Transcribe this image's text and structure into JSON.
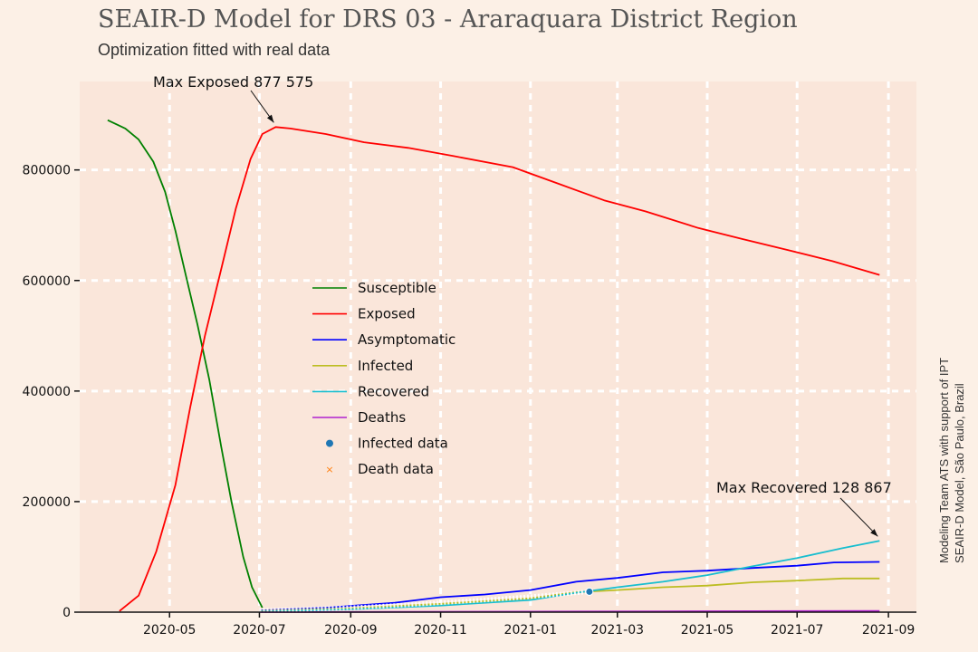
{
  "header": {
    "title": "SEAIR-D Model for DRS 03 - Araraquara District Region",
    "subtitle": "Optimization fitted with real data"
  },
  "credits": {
    "line1": "Modeling Team ATS with support of IPT",
    "line2": "SEAIR-D Model, São Paulo, Brazil"
  },
  "chart_data": {
    "type": "line",
    "xlim": [
      "2020-03-01",
      "2021-09-20"
    ],
    "ylim": [
      0,
      960000
    ],
    "x_ticks": [
      "2020-05",
      "2020-07",
      "2020-09",
      "2020-11",
      "2021-01",
      "2021-03",
      "2021-05",
      "2021-07",
      "2021-09"
    ],
    "y_ticks": [
      0,
      200000,
      400000,
      600000,
      800000
    ],
    "grid": true,
    "legend_position": "center-left",
    "series": [
      {
        "name": "Susceptible",
        "color": "#008000",
        "marker": "line",
        "x": [
          "2020-03-20",
          "2020-04-01",
          "2020-04-10",
          "2020-04-20",
          "2020-04-28",
          "2020-05-05",
          "2020-05-12",
          "2020-05-20",
          "2020-05-28",
          "2020-06-05",
          "2020-06-12",
          "2020-06-20",
          "2020-06-26",
          "2020-07-03"
        ],
        "y": [
          890000,
          875000,
          855000,
          815000,
          760000,
          690000,
          610000,
          520000,
          420000,
          300000,
          200000,
          100000,
          45000,
          8000
        ]
      },
      {
        "name": "Exposed",
        "color": "#ff0000",
        "marker": "line",
        "x": [
          "2020-03-28",
          "2020-04-10",
          "2020-04-22",
          "2020-05-05",
          "2020-05-15",
          "2020-05-25",
          "2020-06-05",
          "2020-06-15",
          "2020-06-25",
          "2020-07-03",
          "2020-07-12",
          "2020-07-22",
          "2020-08-15",
          "2020-09-10",
          "2020-10-10",
          "2020-11-10",
          "2020-12-20",
          "2021-01-20",
          "2021-02-20",
          "2021-03-20",
          "2021-04-25",
          "2021-05-25",
          "2021-06-25",
          "2021-07-25",
          "2021-08-26"
        ],
        "y": [
          2000,
          30000,
          110000,
          230000,
          370000,
          500000,
          620000,
          730000,
          820000,
          865000,
          877575,
          875000,
          865000,
          850000,
          840000,
          825000,
          805000,
          775000,
          745000,
          725000,
          695000,
          675000,
          655000,
          635000,
          610000
        ]
      },
      {
        "name": "Asymptomatic",
        "color": "#0000ff",
        "marker": "line",
        "x": [
          "2020-07-01",
          "2020-08-15",
          "2020-10-01",
          "2020-11-01",
          "2020-12-01",
          "2021-01-01",
          "2021-02-01",
          "2021-03-01",
          "2021-04-01",
          "2021-05-01",
          "2021-06-01",
          "2021-07-01",
          "2021-07-26",
          "2021-08-26"
        ],
        "y": [
          3000,
          8000,
          17000,
          27000,
          32000,
          40000,
          55000,
          62000,
          72000,
          75000,
          80000,
          84000,
          90000,
          91000
        ]
      },
      {
        "name": "Infected",
        "color": "#bcbd22",
        "marker": "line",
        "x": [
          "2020-07-01",
          "2020-09-01",
          "2020-11-01",
          "2021-01-01",
          "2021-02-01",
          "2021-03-01",
          "2021-04-01",
          "2021-05-01",
          "2021-06-01",
          "2021-07-01",
          "2021-08-01",
          "2021-08-26"
        ],
        "y": [
          2000,
          7000,
          15000,
          25000,
          36000,
          40000,
          45000,
          48000,
          54000,
          57000,
          61000,
          61000
        ]
      },
      {
        "name": "Recovered",
        "color": "#17becf",
        "marker": "line",
        "x": [
          "2020-07-01",
          "2020-09-01",
          "2020-11-01",
          "2021-01-01",
          "2021-02-01",
          "2021-03-01",
          "2021-04-01",
          "2021-05-01",
          "2021-06-01",
          "2021-07-01",
          "2021-08-01",
          "2021-08-26"
        ],
        "y": [
          1000,
          5000,
          12000,
          22000,
          35000,
          45000,
          55000,
          67000,
          83000,
          98000,
          116000,
          128867
        ]
      },
      {
        "name": "Deaths",
        "color": "#b020d0",
        "marker": "line",
        "x": [
          "2020-07-01",
          "2020-10-01",
          "2021-01-01",
          "2021-04-01",
          "2021-06-01",
          "2021-08-26"
        ],
        "y": [
          0,
          500,
          1000,
          1500,
          1800,
          2200
        ]
      },
      {
        "name": "Infected data",
        "color": "#1f77b4",
        "marker": "dot",
        "x": [
          "2020-07-01",
          "2020-08-01",
          "2020-09-01",
          "2020-10-01",
          "2020-11-01",
          "2020-12-01",
          "2021-01-01",
          "2021-02-10"
        ],
        "y": [
          3000,
          5000,
          8000,
          12000,
          17000,
          22000,
          28000,
          37000
        ]
      },
      {
        "name": "Death data",
        "color": "#ff7f0e",
        "marker": "x",
        "x": [],
        "y": []
      }
    ],
    "annotations": [
      {
        "label": "Max Exposed",
        "value": "877 575",
        "x": "2020-07-12",
        "y": 877575
      },
      {
        "label": "Max Recovered",
        "value": "128 867",
        "x": "2021-08-26",
        "y": 128867
      }
    ]
  }
}
